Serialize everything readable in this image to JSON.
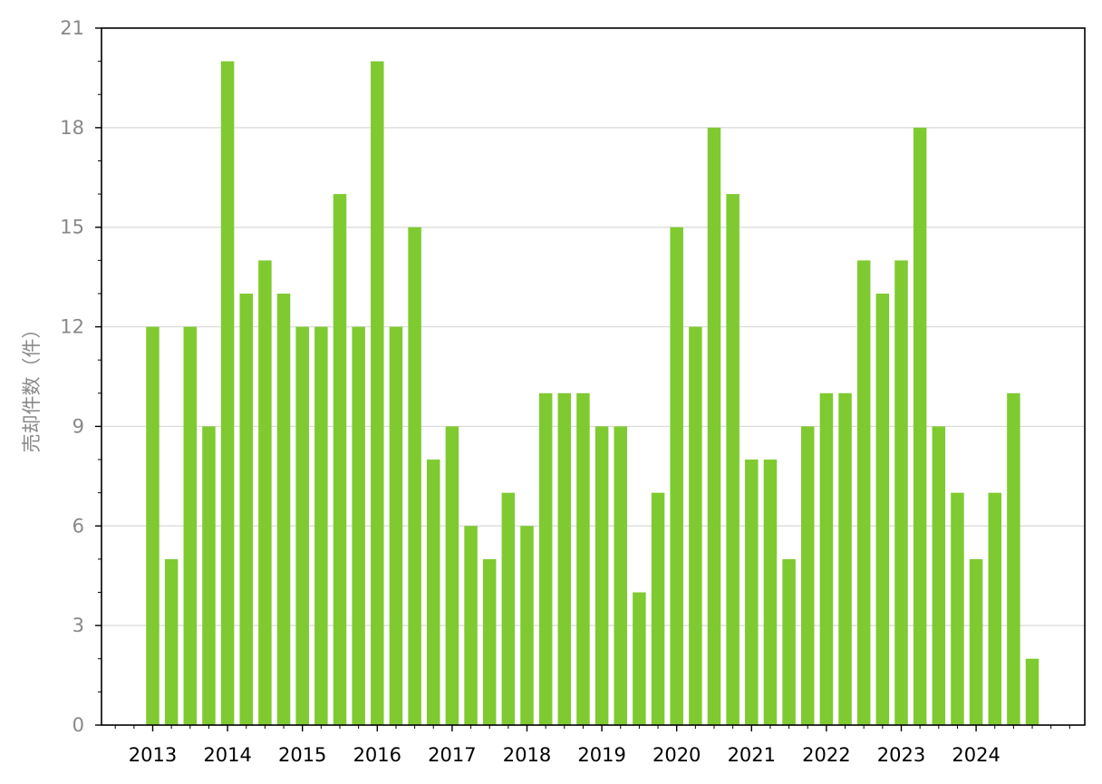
{
  "chart_data": {
    "type": "bar",
    "title": "",
    "xlabel": "",
    "ylabel": "売却件数（件）",
    "ylim": [
      0,
      21
    ],
    "yticks": [
      0,
      3,
      6,
      9,
      12,
      15,
      18,
      21
    ],
    "grid": "horizontal",
    "legend": "none",
    "bar_color": "#7fca30",
    "year_labels": [
      "2013",
      "2014",
      "2015",
      "2016",
      "2017",
      "2018",
      "2019",
      "2020",
      "2021",
      "2022",
      "2023",
      "2024"
    ],
    "categories": [
      "2013 Q1",
      "2013 Q2",
      "2013 Q3",
      "2013 Q4",
      "2014 Q1",
      "2014 Q2",
      "2014 Q3",
      "2014 Q4",
      "2015 Q1",
      "2015 Q2",
      "2015 Q3",
      "2015 Q4",
      "2016 Q1",
      "2016 Q2",
      "2016 Q3",
      "2016 Q4",
      "2017 Q1",
      "2017 Q2",
      "2017 Q3",
      "2017 Q4",
      "2018 Q1",
      "2018 Q2",
      "2018 Q3",
      "2018 Q4",
      "2019 Q1",
      "2019 Q2",
      "2019 Q3",
      "2019 Q4",
      "2020 Q1",
      "2020 Q2",
      "2020 Q3",
      "2020 Q4",
      "2021 Q1",
      "2021 Q2",
      "2021 Q3",
      "2021 Q4",
      "2022 Q1",
      "2022 Q2",
      "2022 Q3",
      "2022 Q4",
      "2023 Q1",
      "2023 Q2",
      "2023 Q3",
      "2023 Q4",
      "2024 Q1",
      "2024 Q2",
      "2024 Q3",
      "2024 Q4"
    ],
    "values": [
      12,
      5,
      12,
      9,
      20,
      13,
      14,
      13,
      12,
      12,
      16,
      12,
      20,
      12,
      15,
      8,
      9,
      6,
      5,
      7,
      6,
      10,
      10,
      10,
      9,
      9,
      4,
      7,
      15,
      12,
      18,
      16,
      8,
      8,
      5,
      9,
      10,
      10,
      14,
      13,
      14,
      18,
      9,
      7,
      5,
      7,
      10,
      2
    ]
  }
}
